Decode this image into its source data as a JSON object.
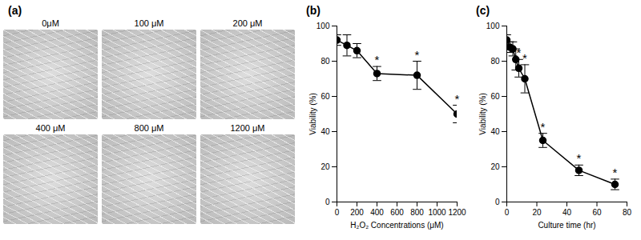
{
  "chart_data": [
    {
      "type": "image_grid",
      "title": "(a)",
      "labels": [
        "0μM",
        "100 μM",
        "200 μM",
        "400 μM",
        "800 μM",
        "1200 μM"
      ]
    },
    {
      "type": "line",
      "title": "(b)",
      "marker": "circle",
      "color": "#000000",
      "grid": false,
      "x_label": "H₂O₂ Concentrations (μM)",
      "y_label": "Viability (%)",
      "x": [
        0,
        100,
        200,
        400,
        800,
        1200
      ],
      "values": [
        92,
        89,
        86,
        73,
        72,
        50
      ],
      "errors": [
        3,
        6,
        4,
        4,
        8,
        5
      ],
      "annotations": [
        {
          "x": 400,
          "text": "*"
        },
        {
          "x": 800,
          "text": "*"
        },
        {
          "x": 1200,
          "text": "*"
        }
      ],
      "xlim": [
        0,
        1200
      ],
      "xticks": [
        0,
        200,
        400,
        600,
        800,
        1000,
        1200
      ],
      "ylim": [
        0,
        100
      ],
      "yticks": [
        0,
        20,
        40,
        60,
        80,
        100
      ]
    },
    {
      "type": "line",
      "title": "(c)",
      "marker": "circle",
      "color": "#000000",
      "grid": false,
      "x_label": "Culture time (hr)",
      "y_label": "Viability (%)",
      "x": [
        0,
        2,
        4,
        6,
        8,
        12,
        24,
        48,
        72
      ],
      "values": [
        92,
        88,
        87,
        81,
        76,
        70,
        35,
        18,
        10
      ],
      "errors": [
        3,
        3,
        4,
        6,
        5,
        8,
        4,
        3,
        3
      ],
      "annotations": [
        {
          "x": 8,
          "text": "*"
        },
        {
          "x": 12,
          "text": "*"
        },
        {
          "x": 24,
          "text": "*"
        },
        {
          "x": 48,
          "text": "*"
        },
        {
          "x": 72,
          "text": "*"
        }
      ],
      "xlim": [
        0,
        80
      ],
      "xticks": [
        0,
        20,
        40,
        60,
        80
      ],
      "ylim": [
        0,
        100
      ],
      "yticks": [
        0,
        20,
        40,
        60,
        80,
        100
      ]
    }
  ]
}
